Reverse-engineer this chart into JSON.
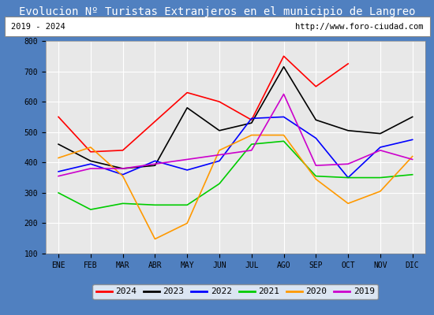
{
  "title": "Evolucion Nº Turistas Extranjeros en el municipio de Langreo",
  "subtitle_left": "2019 - 2024",
  "subtitle_right": "http://www.foro-ciudad.com",
  "x_labels": [
    "ENE",
    "FEB",
    "MAR",
    "ABR",
    "MAY",
    "JUN",
    "JUL",
    "AGO",
    "SEP",
    "OCT",
    "NOV",
    "DIC"
  ],
  "ylim": [
    100,
    800
  ],
  "yticks": [
    100,
    200,
    300,
    400,
    500,
    600,
    700,
    800
  ],
  "series": {
    "2024": {
      "color": "#ff0000",
      "values": [
        550,
        435,
        440,
        535,
        630,
        600,
        540,
        750,
        650,
        725,
        null,
        null
      ]
    },
    "2023": {
      "color": "#000000",
      "values": [
        460,
        405,
        380,
        390,
        580,
        505,
        530,
        715,
        540,
        505,
        495,
        550
      ]
    },
    "2022": {
      "color": "#0000ff",
      "values": [
        370,
        395,
        360,
        405,
        375,
        405,
        545,
        550,
        480,
        350,
        450,
        475
      ]
    },
    "2021": {
      "color": "#00cc00",
      "values": [
        300,
        245,
        265,
        260,
        260,
        330,
        460,
        470,
        355,
        350,
        350,
        360
      ]
    },
    "2020": {
      "color": "#ff9900",
      "values": [
        415,
        450,
        355,
        148,
        200,
        440,
        490,
        490,
        345,
        265,
        305,
        420
      ]
    },
    "2019": {
      "color": "#cc00cc",
      "values": [
        355,
        380,
        380,
        null,
        null,
        null,
        440,
        625,
        390,
        395,
        440,
        410
      ]
    }
  },
  "legend_order": [
    "2024",
    "2023",
    "2022",
    "2021",
    "2020",
    "2019"
  ],
  "title_bg": "#5080c0",
  "title_color": "#ffffff",
  "axes_bg": "#e8e8e8",
  "grid_color": "#ffffff",
  "subtitle_bg": "#ffffff",
  "subtitle_border": "#888888",
  "title_fontsize": 10,
  "subtitle_fontsize": 7.5,
  "tick_fontsize": 7,
  "legend_fontsize": 8
}
